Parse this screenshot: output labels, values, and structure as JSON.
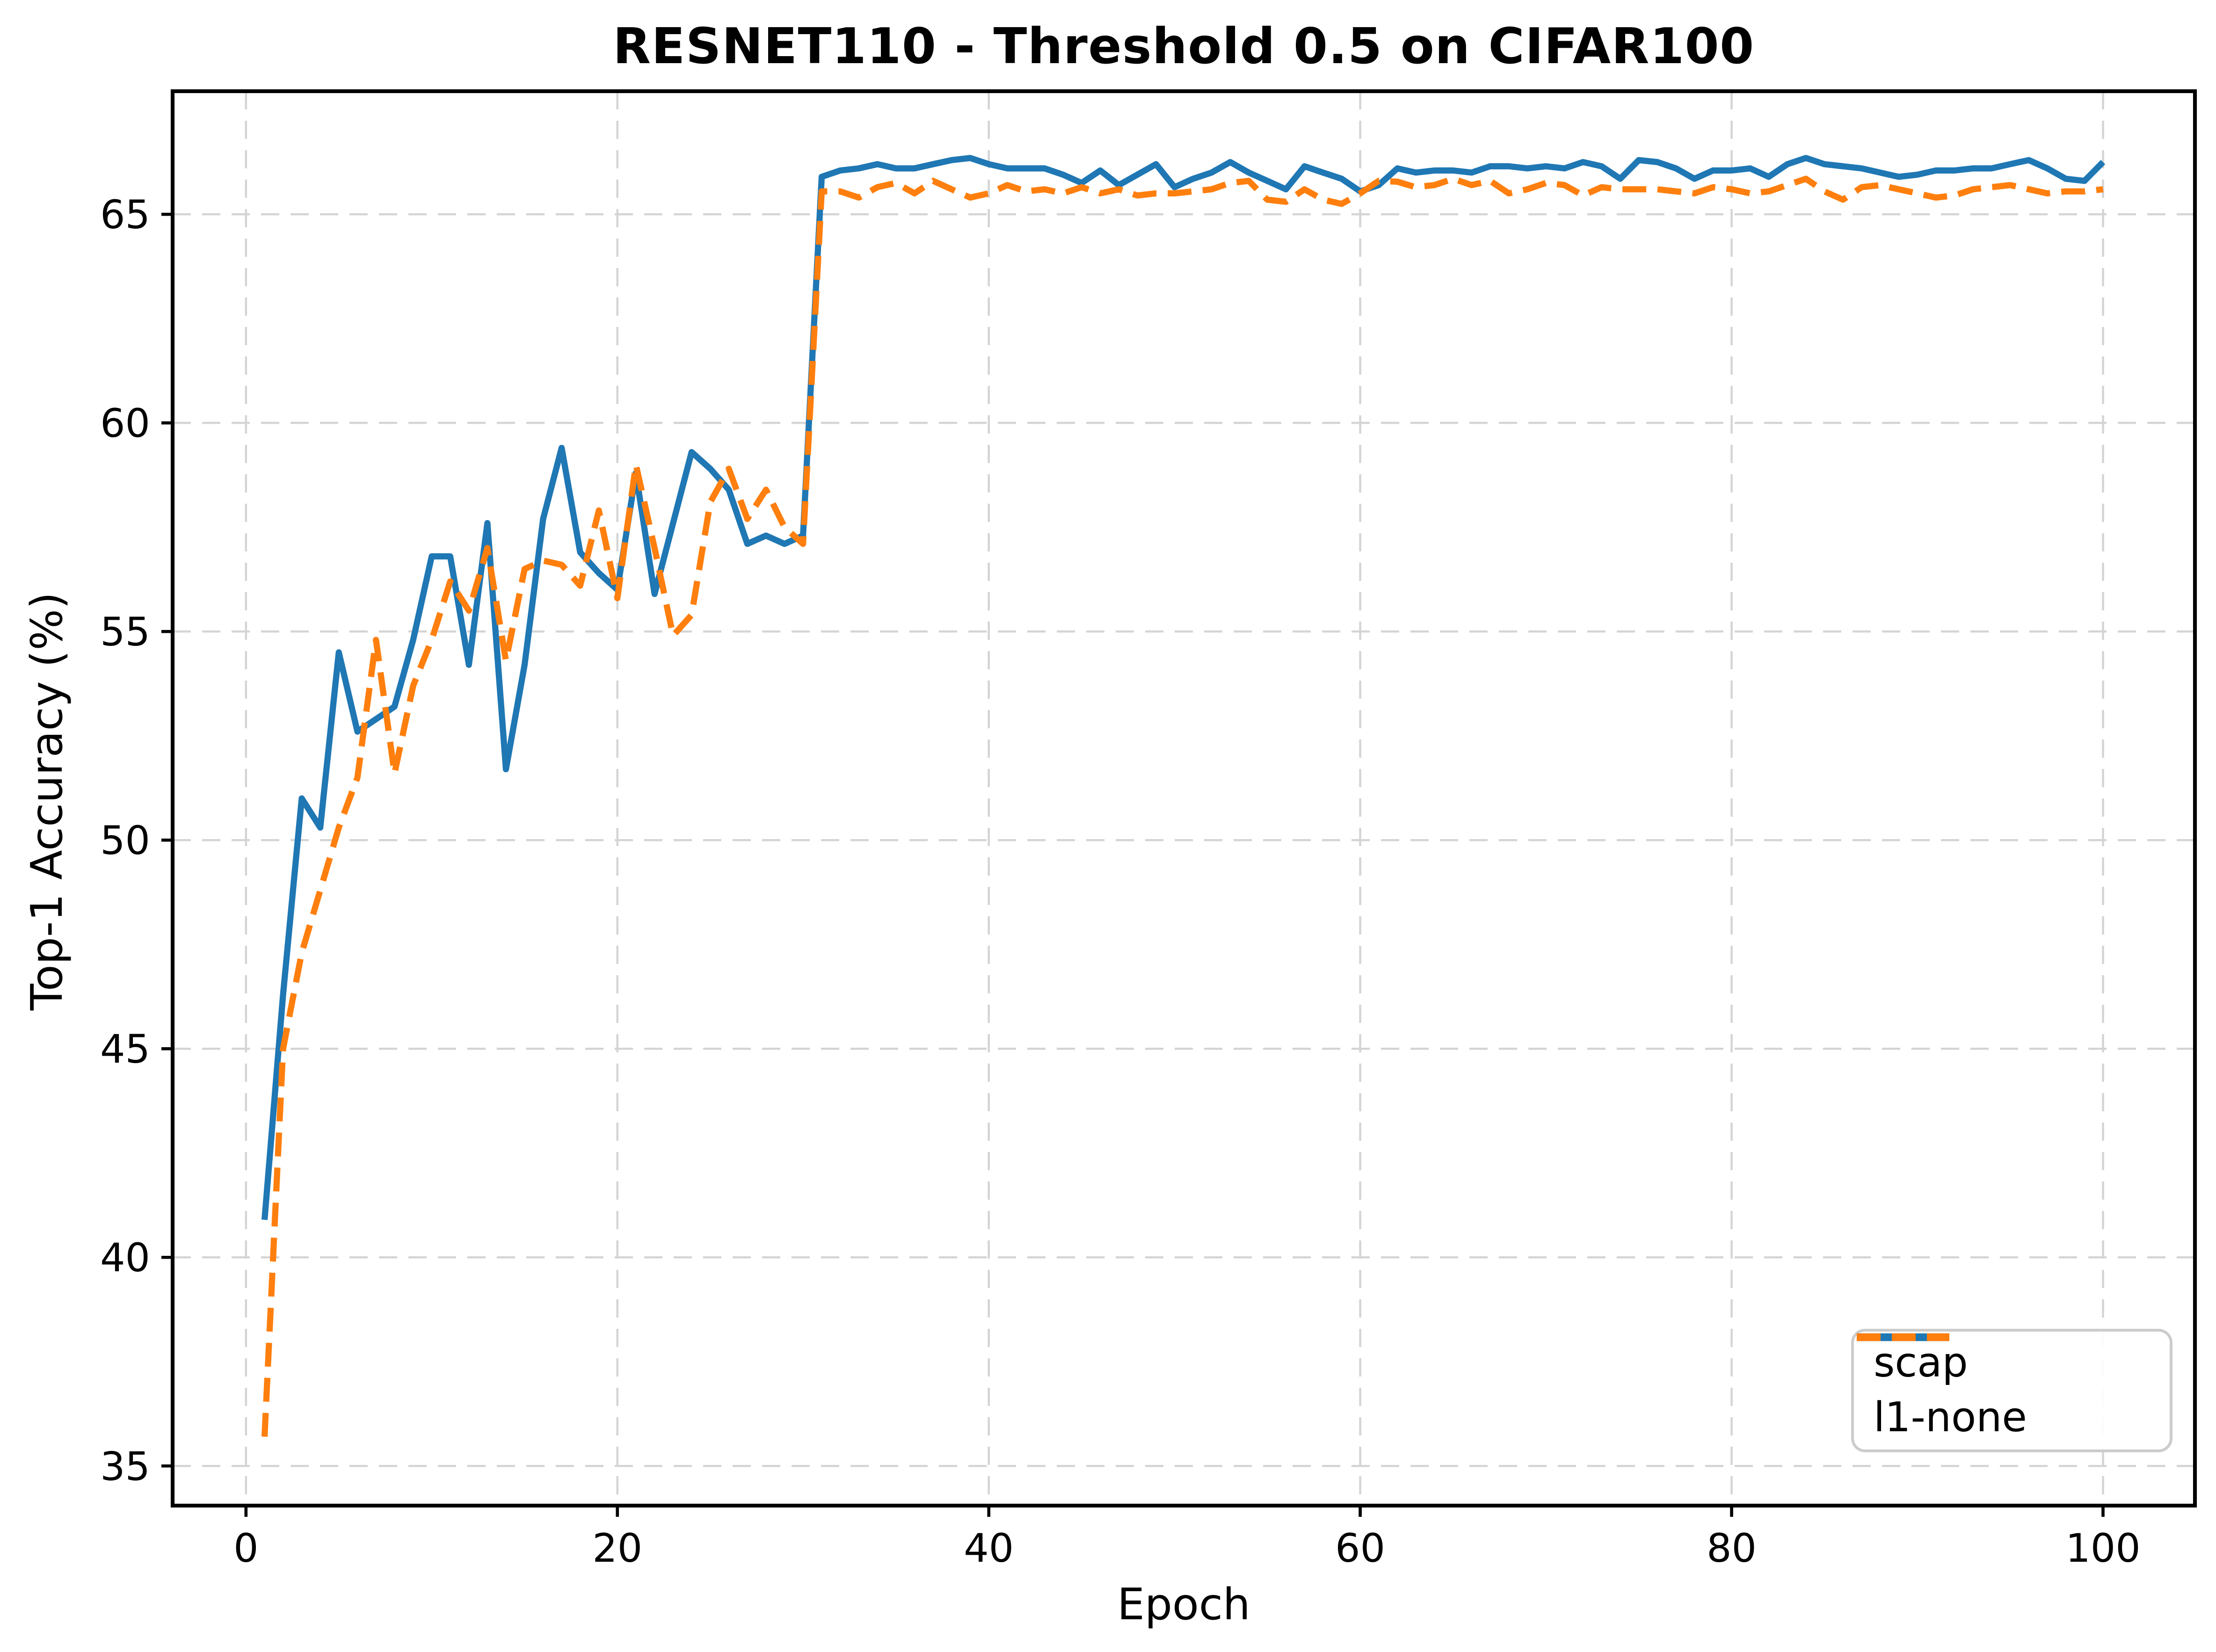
{
  "title": "RESNET110 - Threshold 0.5 on CIFAR100",
  "chart_data": {
    "type": "line",
    "title": "RESNET110 - Threshold 0.5 on CIFAR100",
    "xlabel": "Epoch",
    "ylabel": "Top-1 Accuracy (%)",
    "x_ticks": [
      0,
      20,
      40,
      60,
      80,
      100
    ],
    "y_ticks": [
      35,
      40,
      45,
      50,
      55,
      60,
      65
    ],
    "xlim": [
      -3.95,
      104.95
    ],
    "ylim": [
      34.05,
      67.95
    ],
    "grid": true,
    "grid_style": "dashed",
    "legend_position": "lower right",
    "x": [
      1,
      2,
      3,
      4,
      5,
      6,
      7,
      8,
      9,
      10,
      11,
      12,
      13,
      14,
      15,
      16,
      17,
      18,
      19,
      20,
      21,
      22,
      23,
      24,
      25,
      26,
      27,
      28,
      29,
      30,
      31,
      32,
      33,
      34,
      35,
      36,
      37,
      38,
      39,
      40,
      41,
      42,
      43,
      44,
      45,
      46,
      47,
      48,
      49,
      50,
      51,
      52,
      53,
      54,
      55,
      56,
      57,
      58,
      59,
      60,
      61,
      62,
      63,
      64,
      65,
      66,
      67,
      68,
      69,
      70,
      71,
      72,
      73,
      74,
      75,
      76,
      77,
      78,
      79,
      80,
      81,
      82,
      83,
      84,
      85,
      86,
      87,
      88,
      89,
      90,
      91,
      92,
      93,
      94,
      95,
      96,
      97,
      98,
      99,
      100
    ],
    "series": [
      {
        "name": "scap",
        "color": "#1f77b4",
        "style": "solid",
        "values": [
          40.9,
          46.3,
          51.0,
          50.3,
          54.5,
          52.6,
          52.9,
          53.2,
          54.8,
          56.8,
          56.8,
          54.2,
          57.6,
          51.7,
          54.2,
          57.7,
          59.4,
          56.9,
          56.4,
          56.0,
          58.8,
          55.9,
          57.6,
          59.3,
          58.9,
          58.4,
          57.1,
          57.3,
          57.1,
          57.3,
          65.9,
          66.05,
          66.1,
          66.2,
          66.1,
          66.1,
          66.2,
          66.3,
          66.35,
          66.2,
          66.1,
          66.1,
          66.1,
          65.95,
          65.75,
          66.05,
          65.7,
          65.95,
          66.2,
          65.65,
          65.85,
          66.0,
          66.25,
          66.0,
          65.8,
          65.6,
          66.15,
          66.0,
          65.85,
          65.55,
          65.7,
          66.1,
          66.0,
          66.05,
          66.05,
          66.0,
          66.15,
          66.15,
          66.1,
          66.15,
          66.1,
          66.25,
          66.15,
          65.85,
          66.3,
          66.25,
          66.1,
          65.85,
          66.05,
          66.05,
          66.1,
          65.9,
          66.2,
          66.35,
          66.2,
          66.15,
          66.1,
          66.0,
          65.9,
          65.95,
          66.05,
          66.05,
          66.1,
          66.1,
          66.2,
          66.3,
          66.1,
          65.85,
          65.8,
          66.25
        ]
      },
      {
        "name": "l1-none",
        "color": "#ff7f0e",
        "style": "dashed",
        "values": [
          35.7,
          45.0,
          47.3,
          48.8,
          50.3,
          51.5,
          54.8,
          51.6,
          53.7,
          54.8,
          56.2,
          55.5,
          57.0,
          54.3,
          56.5,
          56.7,
          56.6,
          56.1,
          57.9,
          55.8,
          59.0,
          57.0,
          54.9,
          55.4,
          58.1,
          58.9,
          57.7,
          58.4,
          57.5,
          57.1,
          65.55,
          65.55,
          65.4,
          65.65,
          65.75,
          65.5,
          65.8,
          65.6,
          65.4,
          65.5,
          65.7,
          65.55,
          65.6,
          65.5,
          65.65,
          65.5,
          65.6,
          65.45,
          65.5,
          65.5,
          65.55,
          65.6,
          65.75,
          65.8,
          65.35,
          65.3,
          65.6,
          65.35,
          65.25,
          65.5,
          65.8,
          65.78,
          65.65,
          65.7,
          65.85,
          65.7,
          65.8,
          65.5,
          65.6,
          65.75,
          65.7,
          65.45,
          65.65,
          65.6,
          65.6,
          65.6,
          65.55,
          65.5,
          65.65,
          65.6,
          65.5,
          65.55,
          65.7,
          65.85,
          65.55,
          65.35,
          65.65,
          65.7,
          65.6,
          65.5,
          65.4,
          65.45,
          65.6,
          65.65,
          65.7,
          65.6,
          65.5,
          65.55,
          65.55,
          65.6
        ]
      }
    ]
  }
}
